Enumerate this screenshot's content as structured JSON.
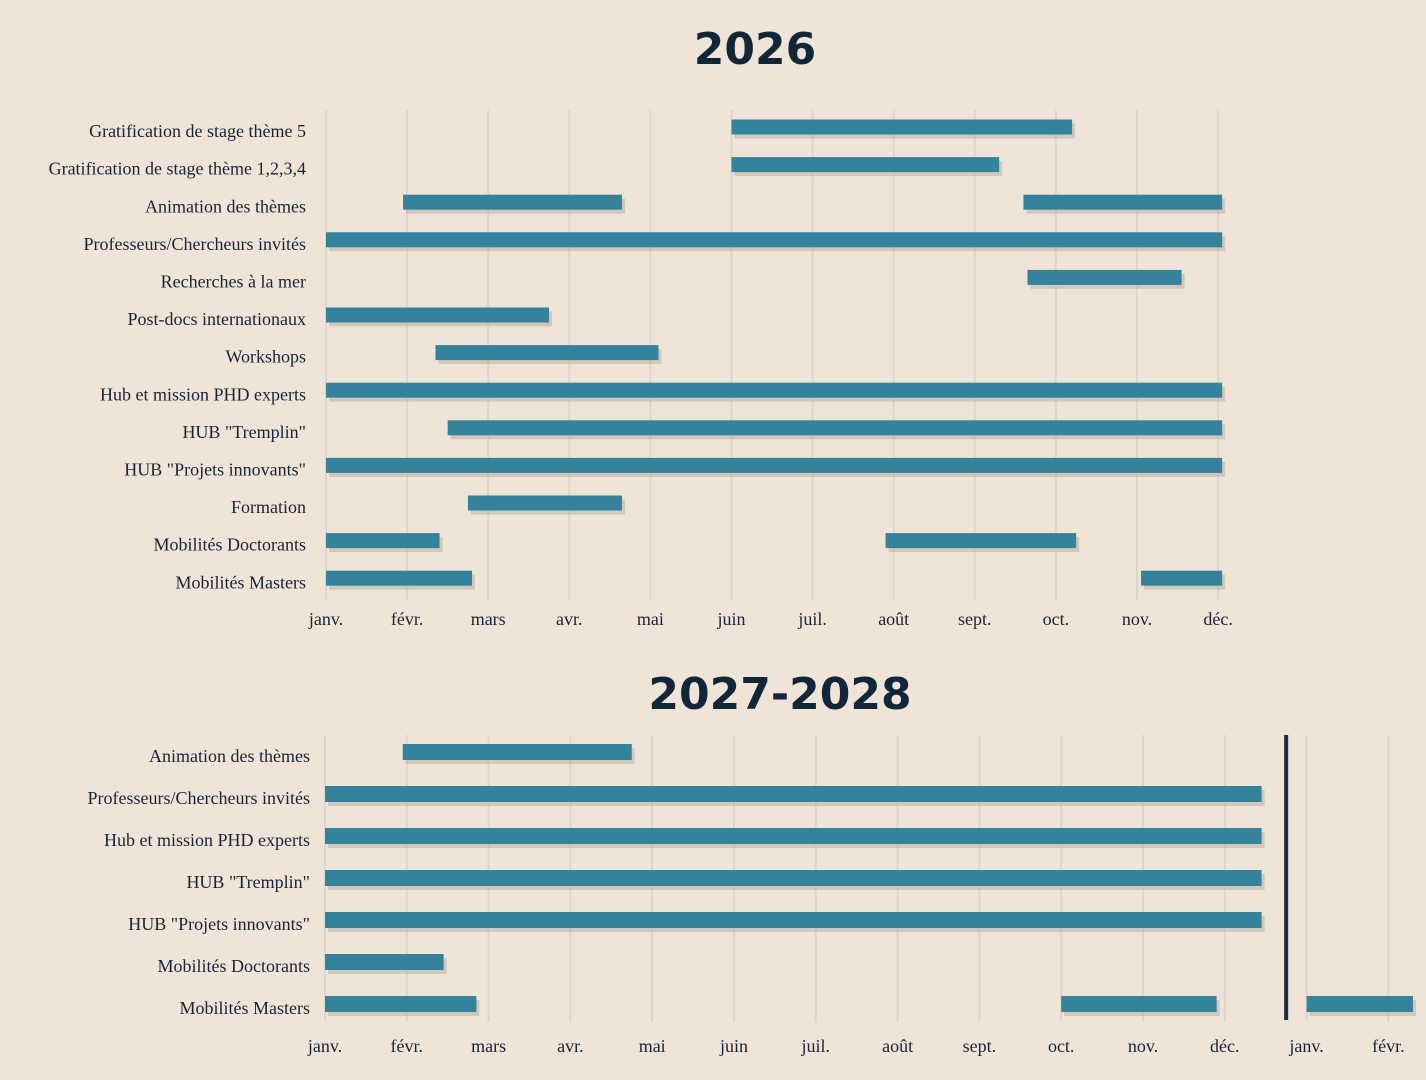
{
  "colors": {
    "background": "#f0e4d7",
    "bar": "#31849b",
    "bar_shadow": "#b9aea2",
    "text": "#13253a",
    "title": "#10273a",
    "grid": "#ddd6cc",
    "year_divider": "#1b2b48"
  },
  "chart_data": [
    {
      "type": "gantt",
      "title": "2026",
      "xlabel": "",
      "ylabel": "",
      "x_unit": "month",
      "x_ticks": [
        "janv.",
        "févr.",
        "mars",
        "avr.",
        "mai",
        "juin",
        "juil.",
        "août",
        "sept.",
        "oct.",
        "nov.",
        "déc."
      ],
      "x_range": [
        0,
        11
      ],
      "grid": true,
      "tasks": [
        {
          "label": "Gratification de stage thème 5",
          "segments": [
            [
              5.0,
              9.2
            ]
          ]
        },
        {
          "label": "Gratification de stage thème 1,2,3,4",
          "segments": [
            [
              5.0,
              8.3
            ]
          ]
        },
        {
          "label": "Animation des thèmes",
          "segments": [
            [
              0.95,
              3.65
            ],
            [
              8.6,
              11.05
            ]
          ]
        },
        {
          "label": "Professeurs/Chercheurs invités",
          "segments": [
            [
              0.0,
              11.05
            ]
          ]
        },
        {
          "label": "Recherches à la mer",
          "segments": [
            [
              8.65,
              10.55
            ]
          ]
        },
        {
          "label": "Post-docs internationaux",
          "segments": [
            [
              0.0,
              2.75
            ]
          ]
        },
        {
          "label": "Workshops",
          "segments": [
            [
              1.35,
              4.1
            ]
          ]
        },
        {
          "label": "Hub et mission PHD experts",
          "segments": [
            [
              0.0,
              11.05
            ]
          ]
        },
        {
          "label": "HUB \"Tremplin\"",
          "segments": [
            [
              1.5,
              11.05
            ]
          ]
        },
        {
          "label": "HUB \"Projets innovants\"",
          "segments": [
            [
              0.0,
              11.05
            ]
          ]
        },
        {
          "label": "Formation",
          "segments": [
            [
              1.75,
              3.65
            ]
          ]
        },
        {
          "label": "Mobilités Doctorants",
          "segments": [
            [
              0.0,
              1.4
            ],
            [
              6.9,
              9.25
            ]
          ]
        },
        {
          "label": "Mobilités Masters",
          "segments": [
            [
              0.0,
              1.8
            ],
            [
              10.05,
              11.05
            ]
          ]
        }
      ]
    },
    {
      "type": "gantt",
      "title": "2027-2028",
      "xlabel": "",
      "ylabel": "",
      "x_unit": "month",
      "x_ticks": [
        "janv.",
        "févr.",
        "mars",
        "avr.",
        "mai",
        "juin",
        "juil.",
        "août",
        "sept.",
        "oct.",
        "nov.",
        "déc.",
        "janv.",
        "févr."
      ],
      "x_range": [
        0,
        13.3
      ],
      "grid": true,
      "year_divider_at": 11.75,
      "tasks": [
        {
          "label": "Animation des thèmes",
          "segments": [
            [
              0.95,
              3.75
            ]
          ]
        },
        {
          "label": "Professeurs/Chercheurs invités",
          "segments": [
            [
              0.0,
              11.45
            ]
          ]
        },
        {
          "label": "Hub et mission PHD experts",
          "segments": [
            [
              0.0,
              11.45
            ]
          ]
        },
        {
          "label": "HUB \"Tremplin\"",
          "segments": [
            [
              0.0,
              11.45
            ]
          ]
        },
        {
          "label": "HUB \"Projets innovants\"",
          "segments": [
            [
              0.0,
              11.45
            ]
          ]
        },
        {
          "label": "Mobilités Doctorants",
          "segments": [
            [
              0.0,
              1.45
            ]
          ]
        },
        {
          "label": "Mobilités Masters",
          "segments": [
            [
              0.0,
              1.85
            ],
            [
              9.0,
              10.9
            ],
            [
              12.0,
              13.3
            ]
          ]
        }
      ]
    }
  ]
}
